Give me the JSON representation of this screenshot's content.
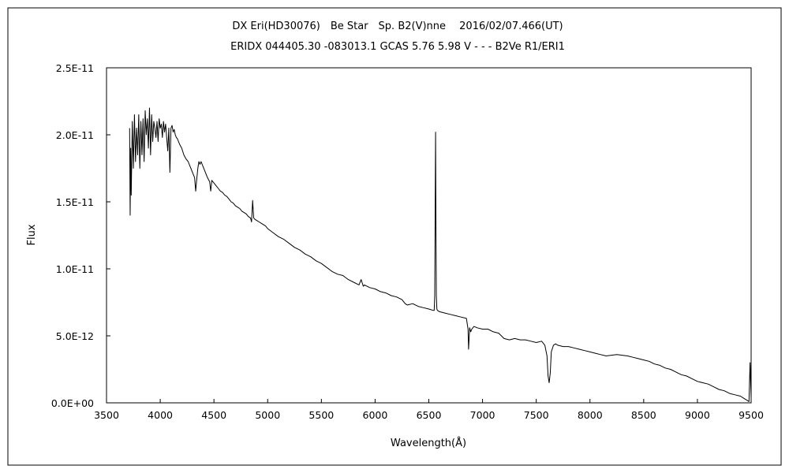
{
  "chart_data": {
    "type": "line",
    "title": "DX Eri(HD30076)　Be Star　Sp. B2(V)nne　 2016/02/07.466(UT)",
    "subtitle": "ERIDX 044405.30 -083013.1 GCAS 5.76 5.98 V - - - B2Ve R1/ERI1",
    "xlabel": "Wavelength(Å)",
    "ylabel": "Flux",
    "xlim": [
      3500,
      9500
    ],
    "ylim": [
      0,
      2.5e-11
    ],
    "x_ticks": [
      3500,
      4000,
      4500,
      5000,
      5500,
      6000,
      6500,
      7000,
      7500,
      8000,
      8500,
      9000,
      9500
    ],
    "x_tick_labels": [
      "3500",
      "4000",
      "4500",
      "5000",
      "5500",
      "6000",
      "6500",
      "7000",
      "7500",
      "8000",
      "8500",
      "9000",
      "9500"
    ],
    "y_ticks": [
      0,
      5e-12,
      1e-11,
      1.5e-11,
      2e-11,
      2.5e-11
    ],
    "y_tick_labels": [
      "0.0E+00",
      "5.0E-12",
      "1.0E-11",
      "1.5E-11",
      "2.0E-11",
      "2.5E-11"
    ],
    "grid": false,
    "series": [
      {
        "color": "#000000",
        "x": [
          3715,
          3720,
          3725,
          3730,
          3740,
          3750,
          3760,
          3770,
          3780,
          3790,
          3800,
          3810,
          3820,
          3830,
          3840,
          3850,
          3860,
          3870,
          3880,
          3890,
          3900,
          3910,
          3920,
          3930,
          3940,
          3950,
          3960,
          3970,
          3980,
          3990,
          4000,
          4010,
          4020,
          4030,
          4040,
          4050,
          4060,
          4070,
          4080,
          4090,
          4100,
          4110,
          4120,
          4130,
          4140,
          4150,
          4160,
          4170,
          4180,
          4200,
          4220,
          4240,
          4260,
          4280,
          4300,
          4320,
          4330,
          4340,
          4350,
          4360,
          4370,
          4380,
          4400,
          4420,
          4440,
          4460,
          4470,
          4480,
          4500,
          4520,
          4540,
          4560,
          4580,
          4600,
          4620,
          4640,
          4660,
          4680,
          4700,
          4720,
          4740,
          4760,
          4780,
          4800,
          4820,
          4840,
          4850,
          4860,
          4870,
          4880,
          4900,
          4920,
          4940,
          4960,
          4980,
          5000,
          5050,
          5100,
          5150,
          5200,
          5250,
          5300,
          5350,
          5400,
          5450,
          5500,
          5550,
          5600,
          5650,
          5700,
          5750,
          5800,
          5850,
          5870,
          5890,
          5900,
          5950,
          6000,
          6050,
          6100,
          6150,
          6200,
          6250,
          6280,
          6300,
          6350,
          6400,
          6450,
          6500,
          6540,
          6550,
          6555,
          6560,
          6563,
          6566,
          6570,
          6575,
          6580,
          6600,
          6650,
          6700,
          6750,
          6800,
          6850,
          6865,
          6870,
          6880,
          6890,
          6900,
          6920,
          6950,
          7000,
          7050,
          7100,
          7150,
          7200,
          7250,
          7300,
          7350,
          7400,
          7450,
          7500,
          7550,
          7580,
          7600,
          7610,
          7620,
          7630,
          7640,
          7660,
          7680,
          7700,
          7750,
          7800,
          7850,
          7900,
          7950,
          8000,
          8050,
          8100,
          8150,
          8200,
          8250,
          8300,
          8350,
          8400,
          8450,
          8500,
          8550,
          8600,
          8650,
          8700,
          8750,
          8800,
          8850,
          8900,
          8950,
          9000,
          9050,
          9100,
          9150,
          9200,
          9250,
          9300,
          9350,
          9400,
          9420,
          9440,
          9460,
          9480,
          9490,
          9500
        ],
        "y": [
          2.05e-11,
          1.4e-11,
          1.9e-11,
          1.55e-11,
          2.1e-11,
          1.75e-11,
          2.15e-11,
          1.8e-11,
          2.05e-11,
          1.85e-11,
          2.15e-11,
          1.75e-11,
          2.1e-11,
          1.85e-11,
          2.12e-11,
          1.8e-11,
          2.18e-11,
          2e-11,
          2.12e-11,
          1.9e-11,
          2.2e-11,
          1.85e-11,
          2.15e-11,
          1.95e-11,
          2.1e-11,
          2.05e-11,
          1.98e-11,
          2.1e-11,
          1.95e-11,
          2.12e-11,
          2.05e-11,
          2.08e-11,
          1.98e-11,
          2.1e-11,
          2.02e-11,
          2.08e-11,
          1.98e-11,
          1.88e-11,
          2.05e-11,
          1.72e-11,
          2.05e-11,
          2.07e-11,
          2.02e-11,
          2.04e-11,
          2e-11,
          1.98e-11,
          1.97e-11,
          1.95e-11,
          1.93e-11,
          1.9e-11,
          1.85e-11,
          1.82e-11,
          1.8e-11,
          1.76e-11,
          1.72e-11,
          1.68e-11,
          1.58e-11,
          1.67e-11,
          1.75e-11,
          1.8e-11,
          1.78e-11,
          1.8e-11,
          1.76e-11,
          1.72e-11,
          1.68e-11,
          1.65e-11,
          1.58e-11,
          1.66e-11,
          1.64e-11,
          1.62e-11,
          1.6e-11,
          1.58e-11,
          1.57e-11,
          1.55e-11,
          1.54e-11,
          1.52e-11,
          1.5e-11,
          1.49e-11,
          1.47e-11,
          1.46e-11,
          1.45e-11,
          1.43e-11,
          1.42e-11,
          1.41e-11,
          1.39e-11,
          1.38e-11,
          1.35e-11,
          1.51e-11,
          1.38e-11,
          1.37e-11,
          1.36e-11,
          1.35e-11,
          1.34e-11,
          1.33e-11,
          1.32e-11,
          1.3e-11,
          1.27e-11,
          1.24e-11,
          1.22e-11,
          1.19e-11,
          1.16e-11,
          1.14e-11,
          1.11e-11,
          1.09e-11,
          1.06e-11,
          1.04e-11,
          1.01e-11,
          9.8e-12,
          9.6e-12,
          9.5e-12,
          9.2e-12,
          9e-12,
          8.8e-12,
          9.2e-12,
          8.7e-12,
          8.8e-12,
          8.6e-12,
          8.5e-12,
          8.3e-12,
          8.2e-12,
          8e-12,
          7.9e-12,
          7.7e-12,
          7.4e-12,
          7.3e-12,
          7.4e-12,
          7.2e-12,
          7.1e-12,
          7e-12,
          6.9e-12,
          6.9e-12,
          8e-12,
          1.6e-11,
          2.02e-11,
          1.4e-11,
          8e-12,
          7e-12,
          6.9e-12,
          6.8e-12,
          6.7e-12,
          6.6e-12,
          6.5e-12,
          6.4e-12,
          6.3e-12,
          5.5e-12,
          4e-12,
          5.6e-12,
          5.3e-12,
          5.5e-12,
          5.7e-12,
          5.6e-12,
          5.5e-12,
          5.5e-12,
          5.3e-12,
          5.2e-12,
          4.8e-12,
          4.7e-12,
          4.8e-12,
          4.7e-12,
          4.7e-12,
          4.6e-12,
          4.5e-12,
          4.6e-12,
          4.3e-12,
          3.5e-12,
          2e-12,
          1.5e-12,
          2.2e-12,
          3.8e-12,
          4.3e-12,
          4.4e-12,
          4.3e-12,
          4.2e-12,
          4.2e-12,
          4.1e-12,
          4e-12,
          3.9e-12,
          3.8e-12,
          3.7e-12,
          3.6e-12,
          3.5e-12,
          3.55e-12,
          3.6e-12,
          3.55e-12,
          3.5e-12,
          3.4e-12,
          3.3e-12,
          3.2e-12,
          3.1e-12,
          2.9e-12,
          2.8e-12,
          2.6e-12,
          2.5e-12,
          2.3e-12,
          2.1e-12,
          2e-12,
          1.8e-12,
          1.6e-12,
          1.5e-12,
          1.4e-12,
          1.2e-12,
          1e-12,
          9e-13,
          7e-13,
          6e-13,
          5e-13,
          4e-13,
          3e-13,
          2e-13,
          1e-13,
          3e-12,
          3e-13
        ]
      }
    ]
  }
}
